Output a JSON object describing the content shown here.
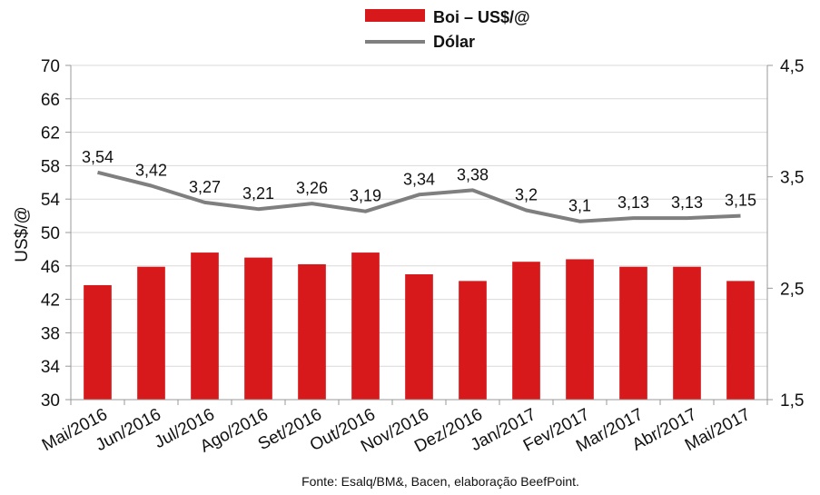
{
  "chart_data": {
    "type": "bar+line",
    "categories": [
      "Mai/2016",
      "Jun/2016",
      "Jul/2016",
      "Ago/2016",
      "Set/2016",
      "Out/2016",
      "Nov/2016",
      "Dez/2016",
      "Jan/2017",
      "Fev/2017",
      "Mar/2017",
      "Abr/2017",
      "Mai/2017"
    ],
    "series": [
      {
        "name": "Boi – US$/@",
        "type": "bar",
        "axis": "left",
        "color": "#d7191c",
        "values": [
          43.7,
          45.9,
          47.6,
          47.0,
          46.2,
          47.6,
          45.0,
          44.2,
          46.5,
          46.8,
          45.9,
          45.9,
          44.2
        ]
      },
      {
        "name": "Dólar",
        "type": "line",
        "axis": "right",
        "color": "#7f7f7f",
        "values": [
          3.54,
          3.42,
          3.27,
          3.21,
          3.26,
          3.19,
          3.34,
          3.38,
          3.2,
          3.1,
          3.13,
          3.13,
          3.15
        ],
        "labels": [
          "3,54",
          "3,42",
          "3,27",
          "3,21",
          "3,26",
          "3,19",
          "3,34",
          "3,38",
          "3,2",
          "3,1",
          "3,13",
          "3,13",
          "3,15"
        ]
      }
    ],
    "ylabel": "US$/@",
    "ylim": [
      30,
      70
    ],
    "yticks": [
      "30",
      "34",
      "38",
      "42",
      "46",
      "50",
      "54",
      "58",
      "62",
      "66",
      "70"
    ],
    "y2lim": [
      1.5,
      4.5
    ],
    "y2ticks": [
      "1,5",
      "2,5",
      "3,5",
      "4,5"
    ],
    "grid": true,
    "legend_position": "top-center",
    "source": "Fonte:  Esalq/BM&,  Bacen,  elaboração  BeefPoint."
  }
}
